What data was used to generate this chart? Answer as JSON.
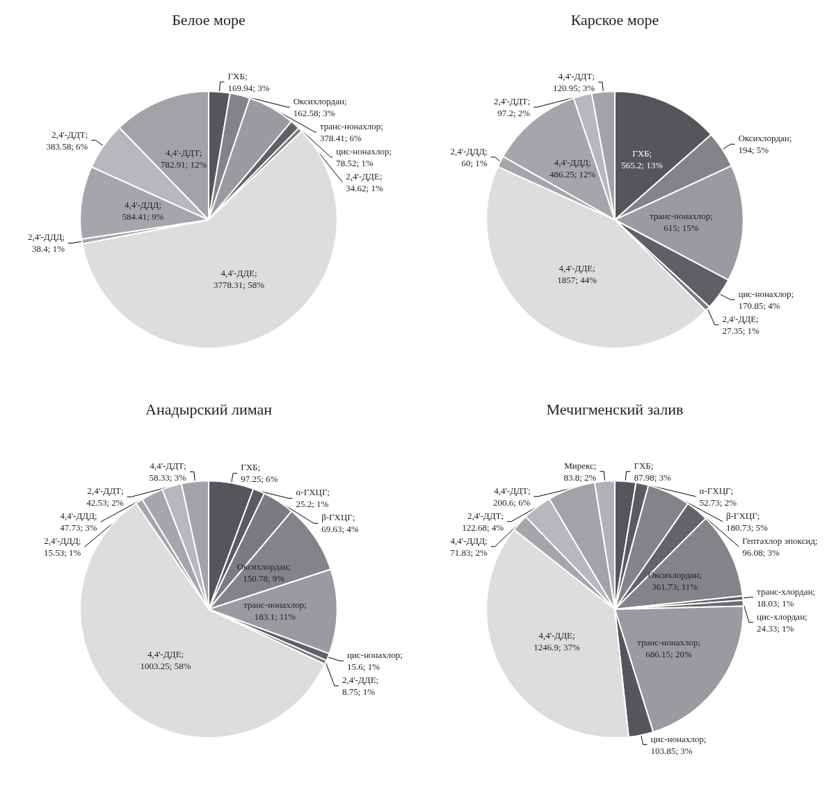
{
  "chart_data": [
    {
      "type": "pie",
      "title": "Белое море",
      "categories": [
        "ГХБ",
        "Оксихлордан",
        "транс-нонахлор",
        "цис-нонахлор",
        "2,4'-ДДЕ",
        "4,4'-ДДЕ",
        "2,4'-ДДД",
        "4,4'-ДДД",
        "2,4'-ДДТ",
        "4,4'-ДДТ"
      ],
      "values": [
        169.94,
        162.58,
        378.41,
        78.52,
        34.62,
        3778.31,
        38.4,
        584.41,
        383.58,
        782.91
      ],
      "value_labels": [
        "; 169.94; 3%",
        "; 162.58; 3%",
        "; 378.41; 6%",
        "; 78.52; 1%",
        "; 34.62; 1%",
        "; 3778.31; 58%",
        "; 38.4; 1%",
        "; 584.41; 9%",
        "; 383.58; 6%",
        "; 782.91; 12%"
      ],
      "colors": [
        "#55565a",
        "#838488",
        "#9a9b9f",
        "#5f6064",
        "#7a7b7f",
        "#dcdddf",
        "#a5a6aa",
        "#a5a6aa",
        "#b7b8bc",
        "#a2a3a7"
      ]
    },
    {
      "type": "pie",
      "title": "Карское море",
      "categories": [
        "ГХБ",
        "Оксихлордан",
        "транс-нонахлор",
        "цис-нонахлор",
        "2,4'-ДДЕ",
        "4,4'-ДДЕ",
        "2,4'-ДДД",
        "4,4'-ДДД",
        "2,4'-ДДТ",
        "4,4'-ДДТ"
      ],
      "values": [
        565.2,
        194,
        615,
        170.85,
        27.35,
        1857,
        60,
        486.25,
        97.2,
        120.95
      ],
      "value_labels": [
        "; 565.2; 13%",
        "; 194; 5%",
        "; 615; 15%",
        "; 170.85; 4%",
        "; 27.35; 1%",
        "; 1857; 44%",
        "; 60; 1%",
        "; 486.25; 12%",
        "; 97.2; 2%",
        "; 120.95; 3%"
      ],
      "colors": [
        "#55565a",
        "#838488",
        "#9a9b9f",
        "#5f6064",
        "#7a7b7f",
        "#dcdddf",
        "#a5a6aa",
        "#a5a6aa",
        "#b7b8bc",
        "#a2a3a7"
      ]
    },
    {
      "type": "pie",
      "title": "Анадырский лиман",
      "categories": [
        "ГХБ",
        "α-ГХЦГ",
        "β-ГХЦГ",
        "Оксихлордан",
        "транс-нонахлор",
        "цис-нонахлор",
        "2,4'-ДДЕ",
        "4,4'-ДДЕ",
        "2,4'-ДДД",
        "4,4'-ДДД",
        "2,4'-ДДТ",
        "4,4'-ДДТ"
      ],
      "values": [
        97.25,
        25.2,
        69.63,
        150.78,
        183.1,
        15.6,
        8.75,
        1003.25,
        15.53,
        47.73,
        42.53,
        58.33
      ],
      "value_labels": [
        "; 97.25; 6%",
        "; 25.2; 1%",
        "; 69.63; 4%",
        "; 150.78; 9%",
        "; 183.1; 11%",
        "; 15.6; 1%",
        "; 8.75; 1%",
        "; 1003.25; 58%",
        "; 15.53; 1%",
        "; 47.73; 3%",
        "; 42.53; 2%",
        "; 58.33; 3%"
      ],
      "colors": [
        "#55565a",
        "#5a5b5f",
        "#7a7b7f",
        "#838488",
        "#9a9b9f",
        "#5f6064",
        "#7a7b7f",
        "#dcdddf",
        "#a5a6aa",
        "#a5a6aa",
        "#b7b8bc",
        "#a2a3a7"
      ]
    },
    {
      "type": "pie",
      "title": "Мечигменский залив",
      "categories": [
        "ГХБ",
        "α-ГХЦГ",
        "β-ГХЦГ",
        "Гептахлор эпоксид",
        "Оксихлордан",
        "транс-хлордан",
        "цис-хлордан",
        "транс-нонахлор",
        "цис-нонахлор",
        "4,4'-ДДЕ",
        "4,4'-ДДД",
        "2,4'-ДДТ",
        "4,4'-ДДТ",
        "Мирекс"
      ],
      "values": [
        87.98,
        52.73,
        180.73,
        96.08,
        361.73,
        18.03,
        24.33,
        686.15,
        103.85,
        1246.9,
        71.83,
        122.68,
        200.6,
        83.8
      ],
      "value_labels": [
        "; 87.98; 3%",
        "; 52.73; 2%",
        "; 180.73; 5%",
        "; 96.08; 3%",
        "; 361.73; 11%",
        "; 18.03; 1%",
        "; 24.33; 1%",
        "; 686.15; 20%",
        "; 103.85; 3%",
        "; 1246.9; 37%",
        "; 71.83; 2%",
        "; 122.68; 4%",
        "; 200.6; 6%",
        "; 83.8; 2%"
      ],
      "colors": [
        "#55565a",
        "#5a5b5f",
        "#838488",
        "#636468",
        "#838488",
        "#5f6064",
        "#6a6b6f",
        "#9a9b9f",
        "#55565a",
        "#dcdddf",
        "#a5a6aa",
        "#b7b8bc",
        "#a2a3a7",
        "#b0b1b5"
      ]
    }
  ]
}
